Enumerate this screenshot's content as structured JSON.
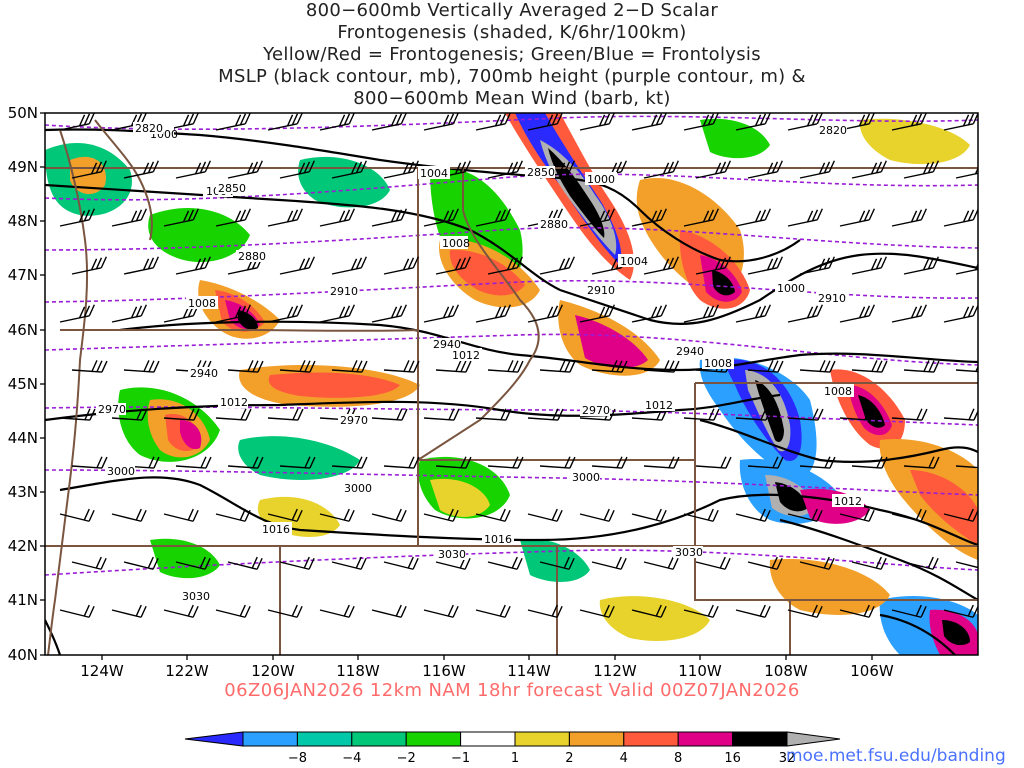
{
  "title": {
    "line1": "800−600mb Vertically Averaged 2−D Scalar",
    "line2": "Frontogenesis (shaded, K/6hr/100km)",
    "line3": "Yellow/Red = Frontogenesis;  Green/Blue = Frontolysis",
    "line4": "MSLP (black contour, mb), 700mb height (purple contour, m) &",
    "line5": "800−600mb Mean Wind (barb, kt)"
  },
  "lat_labels": [
    "50N",
    "49N",
    "48N",
    "47N",
    "46N",
    "45N",
    "44N",
    "43N",
    "42N",
    "41N",
    "40N"
  ],
  "lon_labels": [
    "124W",
    "122W",
    "120W",
    "118W",
    "116W",
    "114W",
    "112W",
    "110W",
    "108W",
    "106W"
  ],
  "isobar_labels": [
    "1000",
    "1004",
    "1008",
    "1012",
    "1016",
    "1000",
    "1004",
    "1008",
    "1012",
    "1004",
    "1008",
    "1012",
    "1016",
    "1012",
    "1008",
    "1000"
  ],
  "height_labels": [
    "2820",
    "2850",
    "2880",
    "2910",
    "2940",
    "2970",
    "3000",
    "3030",
    "2820",
    "2850",
    "2880",
    "2910",
    "2940",
    "2970",
    "3000",
    "3030",
    "2910",
    "2940",
    "2970",
    "3000",
    "3030"
  ],
  "valid_line": "06Z06JAN2026 12km NAM 18hr forecast Valid 00Z07JAN2026",
  "colorbar": {
    "labels": [
      "−8",
      "−4",
      "−2",
      "−1",
      "1",
      "2",
      "4",
      "8",
      "16",
      "32"
    ],
    "colors": [
      "#2a2aff",
      "#2ba0ff",
      "#00c8a8",
      "#00c878",
      "#17d400",
      "#ffffff",
      "#e8d22c",
      "#f2a02a",
      "#ff5a3c",
      "#e00088",
      "#000000",
      "#b0b0b0"
    ]
  },
  "credit": "moe.met.fsu.edu/banding"
}
